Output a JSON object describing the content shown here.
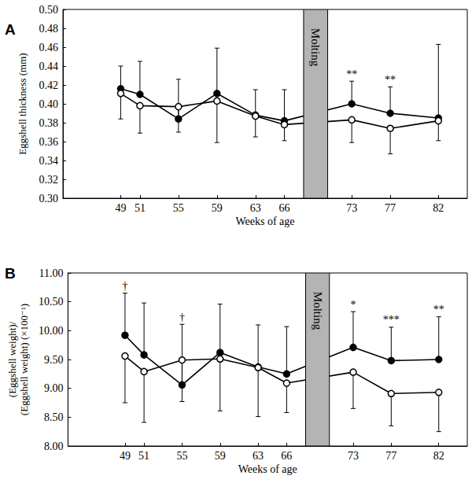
{
  "chart_data": [
    {
      "type": "line",
      "title": "A",
      "x_label": "Weeks of age",
      "y_label": "Eggshell thickness (mm)",
      "x": [
        49,
        51,
        55,
        59,
        63,
        66,
        73,
        77,
        82
      ],
      "xlim": [
        43,
        85
      ],
      "xticks": [
        49,
        51,
        55,
        59,
        63,
        66,
        73,
        77,
        82
      ],
      "ylim": [
        0.3,
        0.5
      ],
      "yticks": [
        {
          "value": 0.3,
          "label": "0.30"
        },
        0.32,
        0.34,
        0.36,
        0.38,
        {
          "value": 0.4,
          "label": "0.40"
        },
        0.42,
        0.44,
        0.46,
        0.48,
        {
          "value": 0.5,
          "label": "0.50"
        }
      ],
      "grid": false,
      "series": [
        {
          "color": "#000000",
          "marker": "filled",
          "line_style": "solid",
          "values": [
            0.416,
            0.41,
            0.384,
            0.411,
            0.388,
            0.382,
            0.4,
            0.39,
            0.385
          ],
          "error_plus": [
            0.024,
            0.035,
            0.042,
            0.048,
            0.027,
            0.033,
            0.024,
            0.028,
            0.078
          ]
        },
        {
          "color": "#000000",
          "marker": "open",
          "line_style": "solid",
          "values": [
            0.411,
            0.398,
            0.397,
            0.403,
            0.387,
            0.378,
            0.383,
            0.374,
            0.382
          ],
          "error_minus": [
            0.027,
            0.029,
            0.027,
            0.044,
            0.022,
            0.017,
            0.024,
            0.027,
            0.021
          ]
        }
      ],
      "annotations": [
        {
          "x": 73,
          "text": "**"
        },
        {
          "x": 77,
          "text": "**"
        }
      ],
      "shaded_region": {
        "label": "Molting",
        "x_range": [
          68,
          70.5
        ]
      }
    },
    {
      "type": "line",
      "title": "B",
      "x_label": "Weeks of age",
      "y_label": "(Eggshell weight)/\n(Eggshell weight) (×100⁻¹)",
      "x": [
        49,
        51,
        55,
        59,
        63,
        66,
        73,
        77,
        82
      ],
      "xlim": [
        43,
        85
      ],
      "xticks": [
        49,
        51,
        55,
        59,
        63,
        66,
        73,
        77,
        82
      ],
      "ylim": [
        8.0,
        11.0
      ],
      "yticks": [
        {
          "value": 8.0,
          "label": "8.00"
        },
        {
          "value": 8.5,
          "label": "8.50"
        },
        {
          "value": 9.0,
          "label": "9.00"
        },
        {
          "value": 9.5,
          "label": "9.50"
        },
        {
          "value": 10.0,
          "label": "10.00"
        },
        {
          "value": 10.5,
          "label": "10.50"
        },
        {
          "value": 11.0,
          "label": "11.00"
        }
      ],
      "grid": false,
      "series": [
        {
          "color": "#000000",
          "marker": "filled",
          "line_style": "solid",
          "values": [
            9.92,
            9.58,
            9.06,
            9.62,
            9.37,
            9.25,
            9.71,
            9.48,
            9.5
          ],
          "error_plus": [
            0.73,
            0.9,
            1.05,
            0.84,
            0.73,
            0.82,
            0.62,
            0.58,
            0.74
          ]
        },
        {
          "color": "#000000",
          "marker": "open",
          "line_style": "solid",
          "values": [
            9.56,
            9.29,
            9.49,
            9.51,
            9.36,
            9.09,
            9.28,
            8.91,
            8.93
          ],
          "error_minus": [
            0.81,
            0.88,
            0.72,
            0.9,
            0.85,
            0.51,
            0.63,
            0.56,
            0.68
          ]
        }
      ],
      "annotations": [
        {
          "x": 49,
          "text": "†"
        },
        {
          "x": 55,
          "text": "†"
        },
        {
          "x": 73,
          "text": "*"
        },
        {
          "x": 77,
          "text": "***"
        },
        {
          "x": 82,
          "text": "**"
        }
      ],
      "shaded_region": {
        "label": "Molting",
        "x_range": [
          68,
          70.5
        ]
      }
    }
  ]
}
